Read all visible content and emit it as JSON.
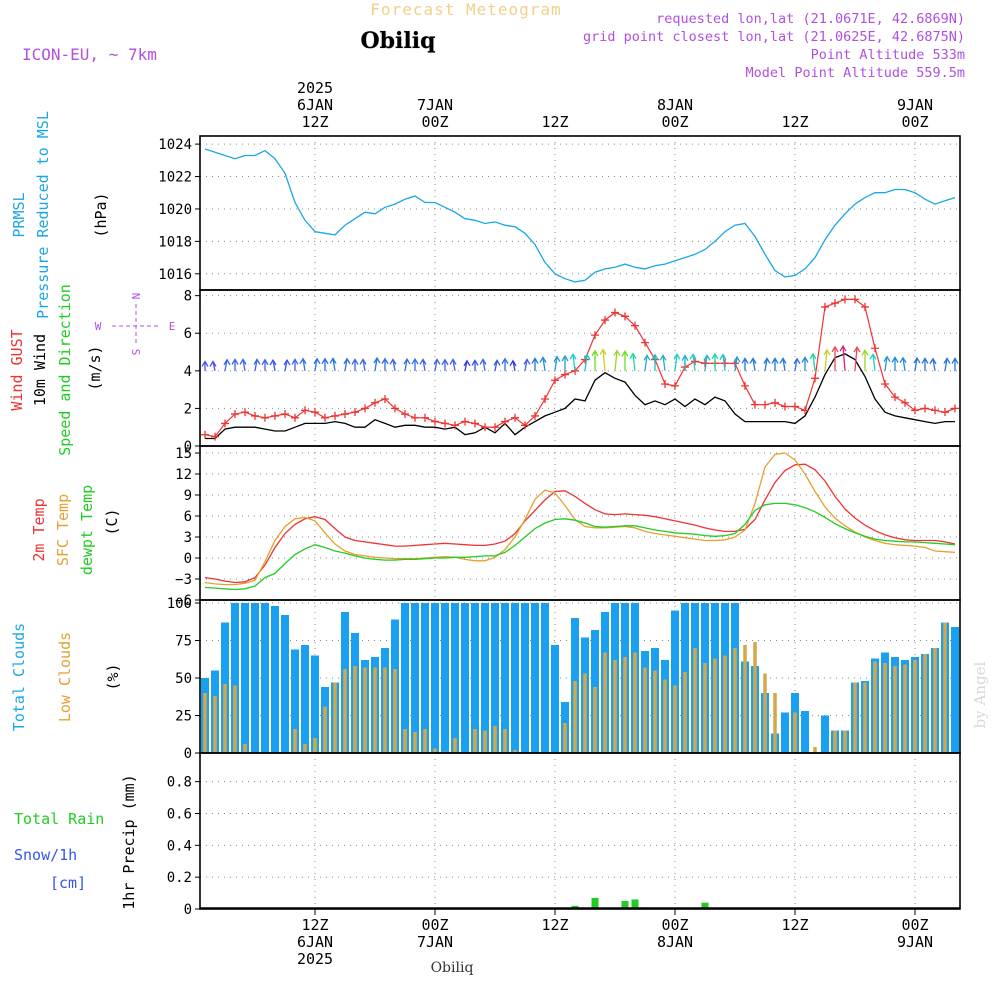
{
  "header": {
    "title": "Forecast Meteogram",
    "location": "Obiliq",
    "model": "ICON-EU, ~ 7km",
    "info": [
      "requested lon,lat (21.0671E, 42.6869N)",
      "grid point closest lon,lat (21.0625E, 42.6875N)",
      "Point Altitude 533m",
      "Model Point Altitude 559.5m"
    ],
    "footer_location": "Obiliq",
    "watermark": "by Angel"
  },
  "time_axis": {
    "top": [
      {
        "label": "2025\n6JAN\n12Z",
        "t": 12
      },
      {
        "label": "7JAN\n00Z",
        "t": 24
      },
      {
        "label": "12Z",
        "t": 36
      },
      {
        "label": "8JAN\n00Z",
        "t": 48
      },
      {
        "label": "12Z",
        "t": 60
      },
      {
        "label": "9JAN\n00Z",
        "t": 72
      }
    ],
    "bottom": [
      {
        "label": "12Z\n6JAN\n2025",
        "t": 12
      },
      {
        "label": "00Z\n7JAN",
        "t": 24
      },
      {
        "label": "12Z",
        "t": 36
      },
      {
        "label": "00Z\n8JAN",
        "t": 48
      },
      {
        "label": "12Z",
        "t": 60
      },
      {
        "label": "00Z\n9JAN",
        "t": 72
      }
    ],
    "start_hour": 1,
    "end_hour": 76
  },
  "panel_labels": {
    "pressure": {
      "title": "PRMSL",
      "sub": "Pressure Reduced to MSL",
      "unit": "(hPa)"
    },
    "wind": {
      "gust": "Wind GUST",
      "wind": "10m Wind",
      "dir": "Speed and Direction",
      "unit": "(m/s)",
      "compass_n": "N",
      "compass_s": "S",
      "compass_w": "W",
      "compass_e": "E"
    },
    "temp": {
      "t2m": "2m Temp",
      "sfc": "SFC Temp",
      "dew": "dewpt Temp",
      "unit": "(C)"
    },
    "clouds": {
      "total": "Total Clouds",
      "low": "Low Clouds",
      "unit": "(%)"
    },
    "precip": {
      "rain": "Total Rain",
      "snow": "Snow/1h",
      "snow_unit": "[cm]",
      "unit": "1hr Precip (mm)"
    }
  },
  "chart_data": [
    {
      "type": "line",
      "name": "pressure",
      "ylim": [
        1015,
        1024.5
      ],
      "yticks": [
        1016,
        1018,
        1020,
        1022,
        1024
      ],
      "color": "#1aa6e6",
      "x": [
        1,
        2,
        3,
        4,
        5,
        6,
        7,
        8,
        9,
        10,
        11,
        12,
        13,
        14,
        15,
        16,
        17,
        18,
        19,
        20,
        21,
        22,
        23,
        24,
        25,
        26,
        27,
        28,
        29,
        30,
        31,
        32,
        33,
        34,
        35,
        36,
        37,
        38,
        39,
        40,
        41,
        42,
        43,
        44,
        45,
        46,
        47,
        48,
        49,
        50,
        51,
        52,
        53,
        54,
        55,
        56,
        57,
        58,
        59,
        60,
        61,
        62,
        63,
        64,
        65,
        66,
        67,
        68,
        69,
        70,
        71,
        72,
        73,
        74,
        75,
        76
      ],
      "values": [
        1023.7,
        1023.5,
        1023.3,
        1023.1,
        1023.3,
        1023.3,
        1023.6,
        1023.1,
        1022.2,
        1020.4,
        1019.3,
        1018.6,
        1018.5,
        1018.4,
        1019.0,
        1019.4,
        1019.8,
        1019.7,
        1020.1,
        1020.3,
        1020.6,
        1020.8,
        1020.4,
        1020.4,
        1020.1,
        1019.8,
        1019.4,
        1019.3,
        1019.1,
        1019.2,
        1019.0,
        1018.9,
        1018.5,
        1017.8,
        1016.7,
        1016.0,
        1015.7,
        1015.5,
        1015.6,
        1016.1,
        1016.3,
        1016.4,
        1016.6,
        1016.4,
        1016.3,
        1016.5,
        1016.6,
        1016.8,
        1017.0,
        1017.2,
        1017.5,
        1018.0,
        1018.6,
        1019.0,
        1019.1,
        1018.3,
        1017.2,
        1016.2,
        1015.8,
        1015.9,
        1016.3,
        1017.0,
        1018.1,
        1019.0,
        1019.7,
        1020.3,
        1020.7,
        1021.0,
        1021.0,
        1021.2,
        1021.2,
        1021.0,
        1020.6,
        1020.3,
        1020.5,
        1020.7
      ]
    },
    {
      "type": "line",
      "name": "wind",
      "ylim": [
        0,
        8.3
      ],
      "yticks": [
        0,
        2,
        4,
        6,
        8
      ],
      "x": [
        1,
        2,
        3,
        4,
        5,
        6,
        7,
        8,
        9,
        10,
        11,
        12,
        13,
        14,
        15,
        16,
        17,
        18,
        19,
        20,
        21,
        22,
        23,
        24,
        25,
        26,
        27,
        28,
        29,
        30,
        31,
        32,
        33,
        34,
        35,
        36,
        37,
        38,
        39,
        40,
        41,
        42,
        43,
        44,
        45,
        46,
        47,
        48,
        49,
        50,
        51,
        52,
        53,
        54,
        55,
        56,
        57,
        58,
        59,
        60,
        61,
        62,
        63,
        64,
        65,
        66,
        67,
        68,
        69,
        70,
        71,
        72,
        73,
        74,
        75,
        76
      ],
      "series": [
        {
          "name": "Wind GUST",
          "color": "#ee3333",
          "values": [
            0.6,
            0.5,
            1.2,
            1.7,
            1.8,
            1.6,
            1.5,
            1.6,
            1.7,
            1.5,
            1.9,
            1.8,
            1.5,
            1.6,
            1.7,
            1.8,
            2.0,
            2.3,
            2.5,
            2.0,
            1.7,
            1.5,
            1.5,
            1.3,
            1.2,
            1.1,
            1.3,
            1.2,
            1.0,
            1.0,
            1.3,
            1.5,
            1.1,
            1.6,
            2.5,
            3.5,
            3.8,
            4.0,
            4.6,
            5.9,
            6.7,
            7.1,
            6.9,
            6.4,
            5.5,
            4.6,
            3.3,
            3.2,
            4.2,
            4.5,
            4.4,
            4.4,
            4.4,
            4.4,
            3.2,
            2.2,
            2.2,
            2.3,
            2.1,
            2.1,
            1.9,
            3.6,
            7.4,
            7.6,
            7.8,
            7.8,
            7.4,
            5.2,
            3.3,
            2.6,
            2.3,
            1.9,
            2.0,
            1.9,
            1.8,
            2.0
          ]
        },
        {
          "name": "10m Wind",
          "color": "#000000",
          "values": [
            0.4,
            0.4,
            0.9,
            1.0,
            1.0,
            1.0,
            0.9,
            0.8,
            0.8,
            1.0,
            1.2,
            1.2,
            1.2,
            1.3,
            1.2,
            1.0,
            1.0,
            1.4,
            1.2,
            1.0,
            1.1,
            1.1,
            1.0,
            1.0,
            0.9,
            1.0,
            0.6,
            0.7,
            1.0,
            0.7,
            1.2,
            0.6,
            1.0,
            1.3,
            1.6,
            1.8,
            2.0,
            2.5,
            2.4,
            3.5,
            3.9,
            3.6,
            3.4,
            2.7,
            2.2,
            2.4,
            2.2,
            2.5,
            2.1,
            2.5,
            2.2,
            2.6,
            2.4,
            1.7,
            1.3,
            1.3,
            1.3,
            1.3,
            1.3,
            1.2,
            1.6,
            2.6,
            3.8,
            4.7,
            4.9,
            4.6,
            3.7,
            2.5,
            1.8,
            1.6,
            1.5,
            1.4,
            1.3,
            1.2,
            1.3,
            1.3
          ]
        }
      ],
      "arrow_colors": [
        "#6a5acd",
        "#7b2bd6",
        "#4b4bff",
        "#3a3adb",
        "#3355ee",
        "#4060f0",
        "#2e6fe6",
        "#2277dd",
        "#2288dd",
        "#2299d4",
        "#22a0cc",
        "#1fb0c8",
        "#19c2c8",
        "#19cfc0",
        "#1ad6a6",
        "#22dd88",
        "#22e066",
        "#33e046",
        "#66e022",
        "#99d822",
        "#c8d21a",
        "#e0b01a",
        "#f08a1a",
        "#f06a22",
        "#e84a55",
        "#e0226e",
        "#cc22aa"
      ]
    },
    {
      "type": "line",
      "name": "temperature",
      "ylim": [
        -6,
        16
      ],
      "yticks": [
        -6,
        -3,
        0,
        3,
        6,
        9,
        12,
        15
      ],
      "x": [
        1,
        2,
        3,
        4,
        5,
        6,
        7,
        8,
        9,
        10,
        11,
        12,
        13,
        14,
        15,
        16,
        17,
        18,
        19,
        20,
        21,
        22,
        23,
        24,
        25,
        26,
        27,
        28,
        29,
        30,
        31,
        32,
        33,
        34,
        35,
        36,
        37,
        38,
        39,
        40,
        41,
        42,
        43,
        44,
        45,
        46,
        47,
        48,
        49,
        50,
        51,
        52,
        53,
        54,
        55,
        56,
        57,
        58,
        59,
        60,
        61,
        62,
        63,
        64,
        65,
        66,
        67,
        68,
        69,
        70,
        71,
        72,
        73,
        74,
        75,
        76
      ],
      "series": [
        {
          "name": "2m Temp",
          "color": "#ee3333",
          "values": [
            -2.8,
            -3.0,
            -3.3,
            -3.5,
            -3.4,
            -2.8,
            -1.0,
            1.5,
            3.5,
            4.8,
            5.6,
            5.9,
            5.5,
            4.2,
            3.0,
            2.5,
            2.3,
            2.1,
            1.9,
            1.7,
            1.7,
            1.8,
            1.9,
            2.0,
            2.1,
            2.0,
            1.9,
            1.8,
            1.8,
            2.0,
            2.4,
            3.5,
            5.3,
            6.8,
            8.3,
            9.5,
            9.6,
            8.8,
            7.8,
            6.9,
            6.3,
            6.2,
            6.3,
            6.2,
            6.1,
            5.9,
            5.6,
            5.3,
            5.0,
            4.7,
            4.3,
            4.0,
            3.8,
            3.8,
            4.1,
            5.5,
            8.3,
            10.8,
            12.5,
            13.3,
            13.4,
            12.6,
            11.0,
            8.8,
            7.0,
            5.7,
            4.7,
            3.9,
            3.3,
            2.9,
            2.6,
            2.5,
            2.5,
            2.5,
            2.3,
            2.0
          ]
        },
        {
          "name": "SFC Temp",
          "color": "#e6a030",
          "values": [
            -3.5,
            -3.7,
            -3.8,
            -3.8,
            -3.6,
            -3.2,
            -0.5,
            2.5,
            4.5,
            5.6,
            5.8,
            5.3,
            3.6,
            2.0,
            1.0,
            0.5,
            0.3,
            0.1,
            0.0,
            -0.1,
            -0.1,
            -0.1,
            0.0,
            0.1,
            0.2,
            0.1,
            -0.2,
            -0.4,
            -0.4,
            0.1,
            1.2,
            3.0,
            5.5,
            8.4,
            9.7,
            9.3,
            7.5,
            5.5,
            4.5,
            4.3,
            4.3,
            4.4,
            4.5,
            4.3,
            3.8,
            3.5,
            3.3,
            3.1,
            2.9,
            2.7,
            2.5,
            2.5,
            2.6,
            3.0,
            4.0,
            7.8,
            13.0,
            14.8,
            15.0,
            14.0,
            12.0,
            9.5,
            7.3,
            5.7,
            4.6,
            3.7,
            3.0,
            2.5,
            2.1,
            1.9,
            1.8,
            1.7,
            1.5,
            1.0,
            0.9,
            0.8
          ]
        },
        {
          "name": "dewpt Temp",
          "color": "#22cc22",
          "values": [
            -4.2,
            -4.3,
            -4.4,
            -4.5,
            -4.4,
            -4.0,
            -2.8,
            -2.2,
            -0.8,
            0.5,
            1.3,
            1.9,
            1.5,
            1.0,
            0.7,
            0.3,
            0.0,
            -0.2,
            -0.3,
            -0.3,
            -0.2,
            -0.2,
            -0.1,
            0.0,
            0.0,
            0.1,
            0.1,
            0.2,
            0.3,
            0.3,
            0.8,
            1.8,
            3.0,
            4.2,
            5.0,
            5.5,
            5.6,
            5.4,
            5.0,
            4.5,
            4.4,
            4.5,
            4.6,
            4.6,
            4.3,
            4.0,
            3.8,
            3.6,
            3.5,
            3.4,
            3.2,
            3.1,
            3.2,
            3.5,
            4.8,
            6.8,
            7.6,
            7.8,
            7.8,
            7.6,
            7.2,
            6.6,
            5.8,
            4.9,
            4.2,
            3.6,
            3.1,
            2.7,
            2.5,
            2.4,
            2.3,
            2.3,
            2.2,
            2.1,
            2.0,
            1.9
          ]
        }
      ]
    },
    {
      "type": "bar",
      "name": "clouds",
      "ylim": [
        0,
        102
      ],
      "yticks": [
        0,
        25,
        50,
        75,
        100
      ],
      "x": [
        1,
        2,
        3,
        4,
        5,
        6,
        7,
        8,
        9,
        10,
        11,
        12,
        13,
        14,
        15,
        16,
        17,
        18,
        19,
        20,
        21,
        22,
        23,
        24,
        25,
        26,
        27,
        28,
        29,
        30,
        31,
        32,
        33,
        34,
        35,
        36,
        37,
        38,
        39,
        40,
        41,
        42,
        43,
        44,
        45,
        46,
        47,
        48,
        49,
        50,
        51,
        52,
        53,
        54,
        55,
        56,
        57,
        58,
        59,
        60,
        61,
        62,
        63,
        64,
        65,
        66,
        67,
        68,
        69,
        70,
        71,
        72,
        73,
        74,
        75,
        76
      ],
      "series": [
        {
          "name": "Total Clouds",
          "color": "#1aa0f0",
          "values": [
            50,
            55,
            87,
            100,
            100,
            100,
            100,
            98,
            92,
            69,
            72,
            65,
            44,
            47,
            94,
            80,
            62,
            64,
            70,
            89,
            100,
            100,
            100,
            100,
            100,
            100,
            100,
            100,
            100,
            100,
            100,
            100,
            100,
            100,
            100,
            72,
            34,
            90,
            77,
            82,
            94,
            100,
            100,
            100,
            68,
            70,
            62,
            95,
            100,
            100,
            100,
            100,
            100,
            100,
            61,
            58,
            40,
            13,
            27,
            40,
            28,
            0,
            25,
            15,
            15,
            47,
            48,
            63,
            67,
            64,
            62,
            64,
            66,
            70,
            87,
            84
          ]
        },
        {
          "name": "Low Clouds",
          "color": "#d4a84a",
          "values": [
            40,
            38,
            46,
            45,
            6,
            0,
            0,
            0,
            0,
            16,
            6,
            10,
            31,
            47,
            56,
            58,
            57,
            57,
            57,
            56,
            16,
            14,
            16,
            3,
            1,
            10,
            0,
            16,
            15,
            18,
            16,
            2,
            0,
            0,
            0,
            0,
            20,
            48,
            53,
            44,
            67,
            62,
            64,
            67,
            57,
            55,
            49,
            45,
            54,
            70,
            60,
            63,
            65,
            70,
            72,
            74,
            53,
            40,
            0,
            27,
            0,
            4,
            0,
            15,
            15,
            47,
            47,
            61,
            60,
            58,
            59,
            62,
            66,
            70,
            87,
            0
          ]
        }
      ]
    },
    {
      "type": "bar",
      "name": "precipitation",
      "ylim": [
        0,
        0.98
      ],
      "yticks": [
        0,
        0.2,
        0.4,
        0.6,
        0.8
      ],
      "series": [
        {
          "name": "Total Rain",
          "color": "#22cc22",
          "x": [
            38,
            40,
            43,
            44,
            45,
            51,
            54
          ],
          "values": [
            0.02,
            0.07,
            0.05,
            0.06,
            0.01,
            0.04,
            0.01
          ]
        },
        {
          "name": "Snow/1h",
          "color": "#3355ee",
          "x": [],
          "values": []
        }
      ]
    }
  ]
}
